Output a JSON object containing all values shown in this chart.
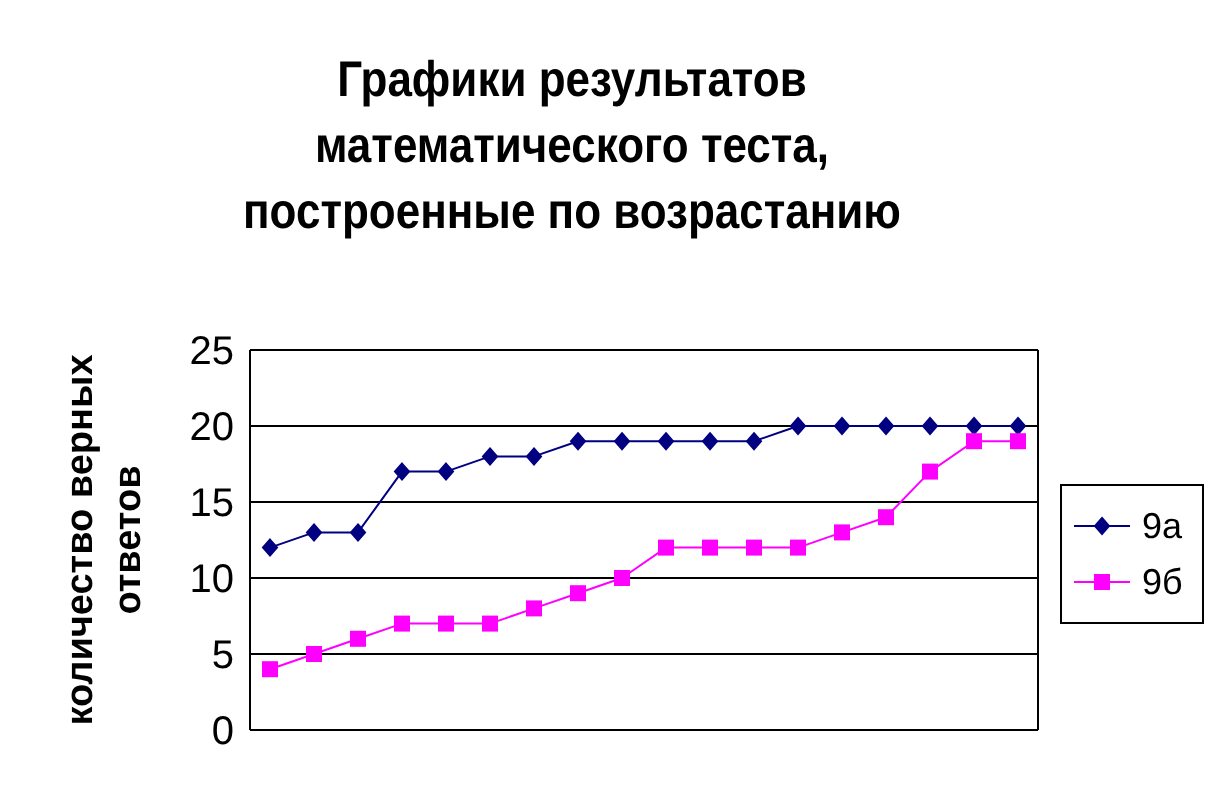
{
  "chart_data": {
    "type": "line",
    "title": "Графики результатов математического теста, построенные по возрастанию",
    "ylabel": "количество верных ответов",
    "categories": [
      null,
      null,
      null,
      null,
      null,
      null,
      null,
      null,
      null,
      null,
      null,
      null,
      null,
      null,
      null,
      null,
      null,
      null
    ],
    "series": [
      {
        "name": "9а",
        "color": "#000080",
        "marker": "diamond",
        "values": [
          12,
          13,
          13,
          17,
          17,
          18,
          18,
          19,
          19,
          19,
          19,
          19,
          20,
          20,
          20,
          20,
          20,
          20
        ]
      },
      {
        "name": "9б",
        "color": "#ff00ff",
        "marker": "square",
        "values": [
          4,
          5,
          6,
          7,
          7,
          7,
          8,
          9,
          10,
          12,
          12,
          12,
          12,
          13,
          14,
          17,
          19,
          19
        ]
      }
    ],
    "ylim": [
      0,
      25
    ],
    "yticks": [
      0,
      5,
      10,
      15,
      20,
      25
    ],
    "grid": "y",
    "legend": "right"
  }
}
